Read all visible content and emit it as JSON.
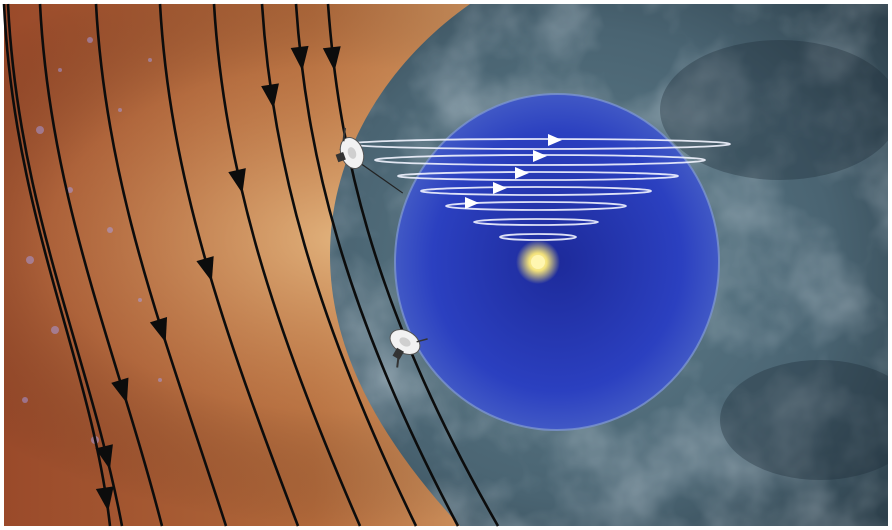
{
  "scene": {
    "interstellar_field_lines": 9,
    "heliosheath_spiral_arrows": 6,
    "spacecraft_count": 2,
    "colors": {
      "interstellar_medium": "#b0683a",
      "interstellar_highlight": "#e8b87e",
      "heliosheath": "#4e6a78",
      "heliosphere_inner": "#2a3fbe",
      "heliosphere_edge": "#6a86c4",
      "sun": "#f3e27a",
      "field_line": "#0c0c0c",
      "spiral_line": "#f2f4ff"
    }
  }
}
